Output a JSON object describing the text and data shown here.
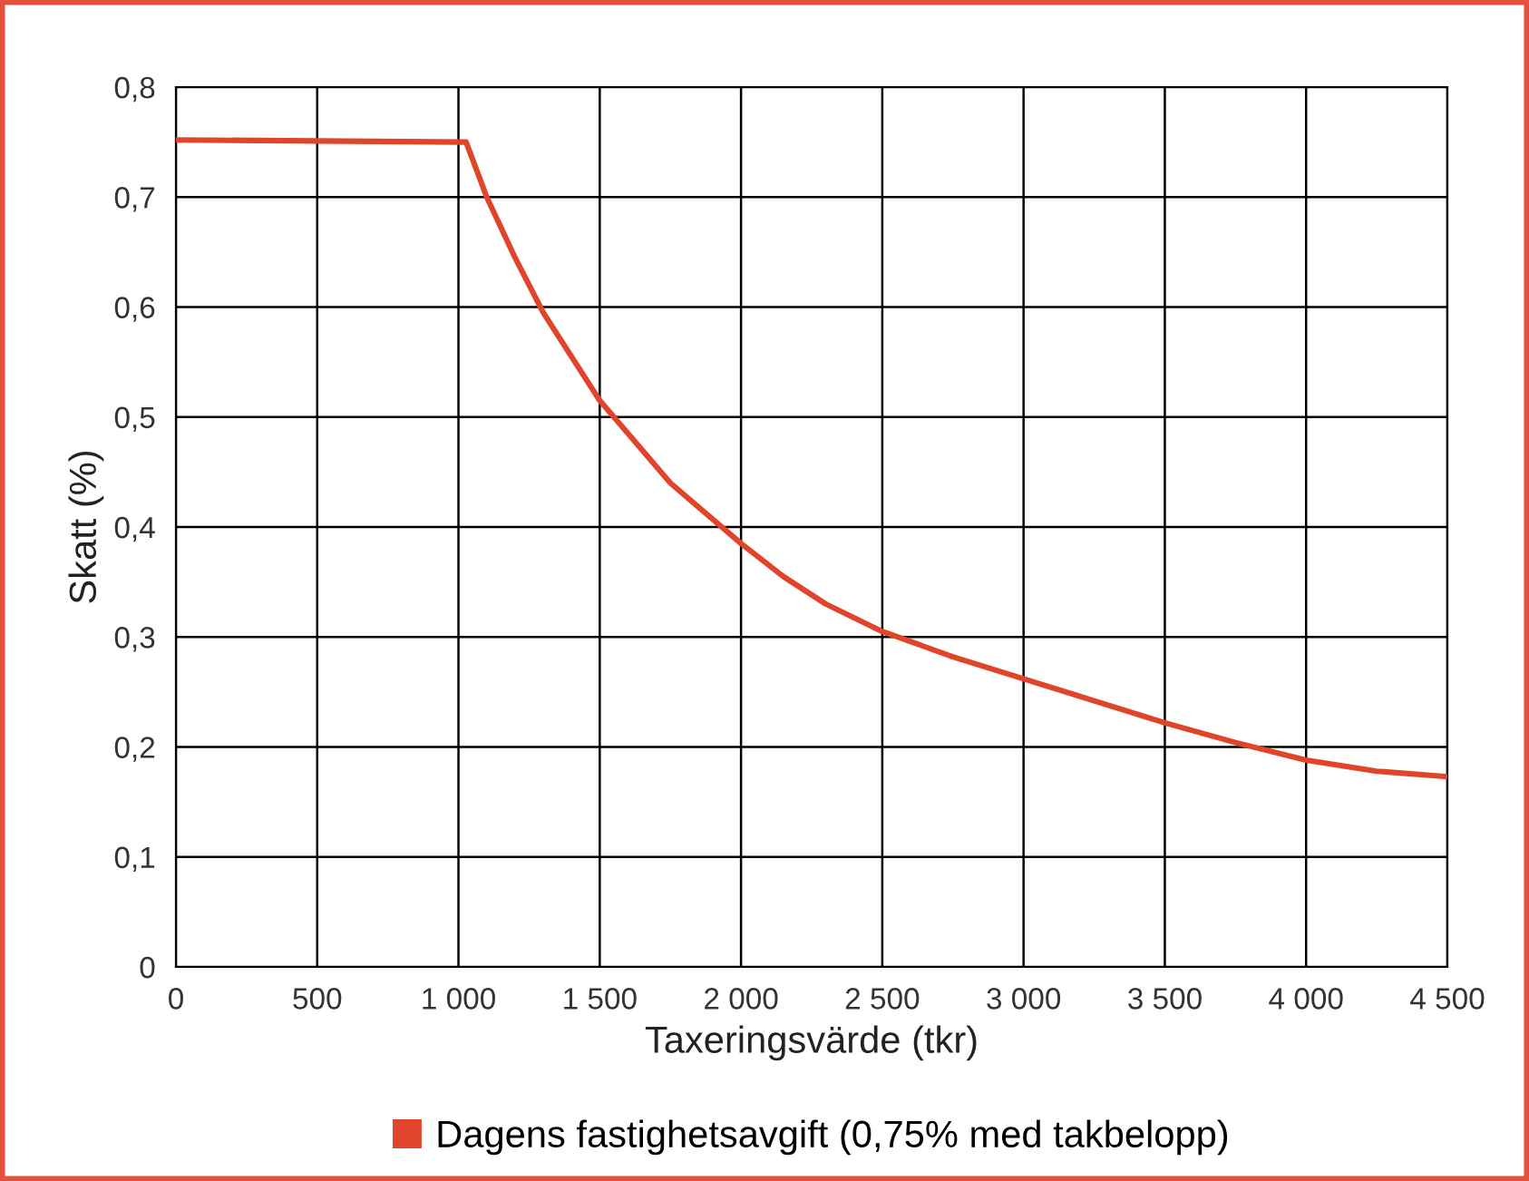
{
  "chart_data": {
    "type": "line",
    "xlabel": "Taxeringsvärde (tkr)",
    "ylabel": "Skatt (%)",
    "series": [
      {
        "name": "Dagens fastighetsavgift (0,75% med takbelopp)",
        "color": "#e0442a",
        "x": [
          0,
          500,
          1027,
          1100,
          1200,
          1300,
          1500,
          1750,
          2000,
          2150,
          2300,
          2500,
          2750,
          3000,
          3250,
          3500,
          3750,
          4000,
          4250,
          4500
        ],
        "values": [
          0.752,
          0.751,
          0.75,
          0.7,
          0.645,
          0.595,
          0.515,
          0.44,
          0.385,
          0.355,
          0.33,
          0.305,
          0.282,
          0.262,
          0.242,
          0.222,
          0.204,
          0.188,
          0.178,
          0.173
        ]
      }
    ],
    "xlim": [
      0,
      4500
    ],
    "xticks": [
      0,
      500,
      {
        "value": 1000,
        "label": "1 000"
      },
      {
        "value": 1500,
        "label": "1 500"
      },
      {
        "value": 2000,
        "label": "2 000"
      },
      {
        "value": 2500,
        "label": "2 500"
      },
      {
        "value": 3000,
        "label": "3 000"
      },
      {
        "value": 3500,
        "label": "3 500"
      },
      {
        "value": 4000,
        "label": "4 000"
      },
      {
        "value": 4500,
        "label": "4 500"
      }
    ],
    "ylim": [
      0,
      0.8
    ],
    "yticks": [
      0,
      {
        "value": 0.1,
        "label": "0,1"
      },
      {
        "value": 0.2,
        "label": "0,2"
      },
      {
        "value": 0.3,
        "label": "0,3"
      },
      {
        "value": 0.4,
        "label": "0,4"
      },
      {
        "value": 0.5,
        "label": "0,5"
      },
      {
        "value": 0.6,
        "label": "0,6"
      },
      {
        "value": 0.7,
        "label": "0,7"
      },
      {
        "value": 0.8,
        "label": "0,8"
      }
    ],
    "grid": true,
    "legend": "bottom",
    "marker": "none",
    "line_style": "solid"
  }
}
